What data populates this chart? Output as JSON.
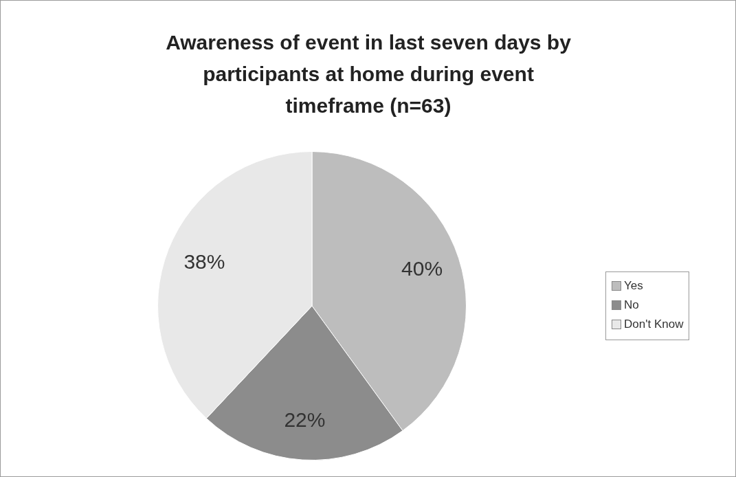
{
  "chart_data": {
    "type": "pie",
    "title": "Awareness of event in last seven days by participants at home during event timeframe (n=63)",
    "categories": [
      "Yes",
      "No",
      "Don't Know"
    ],
    "values": [
      40,
      22,
      38
    ],
    "colors": [
      "#bdbdbd",
      "#8c8c8c",
      "#e8e8e8"
    ],
    "value_labels": [
      "40%",
      "22%",
      "38%"
    ],
    "legend": "right"
  }
}
